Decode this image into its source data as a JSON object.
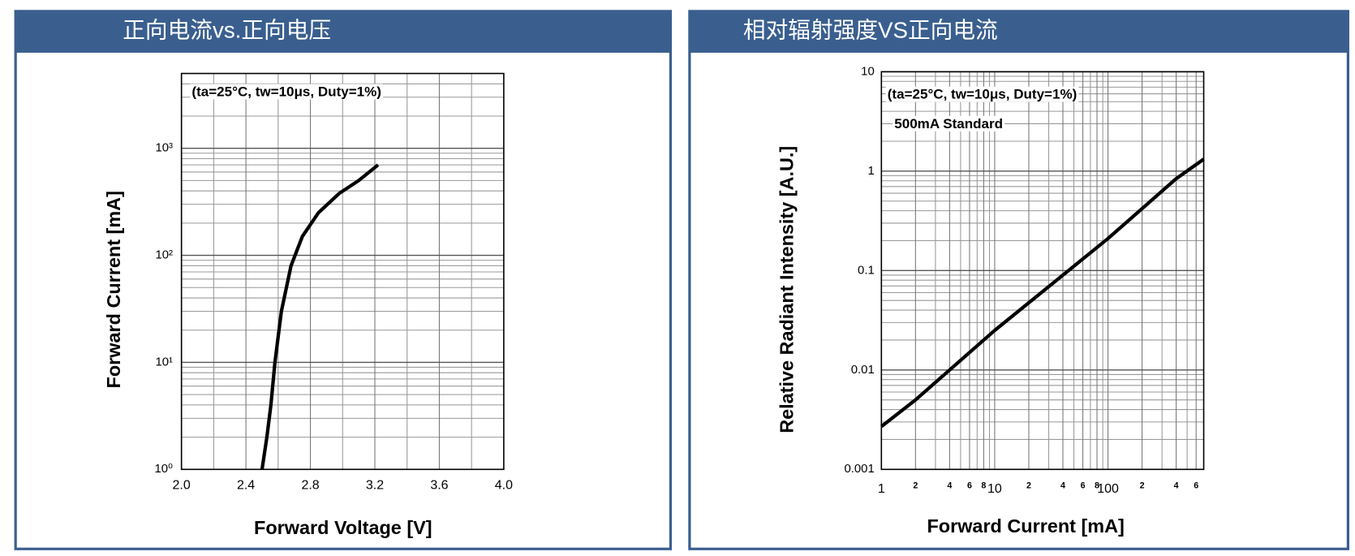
{
  "chart_data": [
    {
      "type": "line",
      "title": "正向电流vs.正向电压",
      "xlabel": "Forward Voltage [V]",
      "ylabel": "Forward Current [mA]",
      "annotations": [
        "(ta=25°C, tw=10μs, Duty=1%)"
      ],
      "x": [
        2.5,
        2.53,
        2.555,
        2.58,
        2.62,
        2.68,
        2.75,
        2.85,
        2.98,
        3.1,
        3.22
      ],
      "values": [
        1,
        2,
        4,
        10,
        30,
        80,
        150,
        250,
        380,
        500,
        700
      ],
      "color": "#000000",
      "xscale": "linear",
      "yscale": "log",
      "xlim": [
        2.0,
        4.0
      ],
      "ylim": [
        1,
        5000
      ],
      "xticks": [
        {
          "value": 2.0,
          "label": "2.0"
        },
        2.4,
        2.8,
        3.2,
        3.6,
        {
          "value": 4.0,
          "label": "4.0"
        }
      ],
      "x_minor_grid": [
        2.2,
        2.6,
        3.0,
        3.4,
        3.8
      ],
      "yticks": [
        {
          "value": 1,
          "label": "10⁰"
        },
        {
          "value": 10,
          "label": "10¹"
        },
        {
          "value": 100,
          "label": "10²"
        },
        {
          "value": 1000,
          "label": "10³"
        }
      ],
      "y_minor_grid": [
        2,
        3,
        4,
        5,
        6,
        7,
        8,
        9,
        20,
        30,
        40,
        50,
        60,
        70,
        80,
        90,
        200,
        300,
        400,
        500,
        600,
        700,
        800,
        900,
        2000,
        3000,
        4000
      ],
      "grid": true
    },
    {
      "type": "line",
      "title": "相对辐射强度VS正向电流",
      "xlabel": "Forward Current [mA]",
      "ylabel": "Relative Radiant Intensity [A.U.]",
      "annotations": [
        "(ta=25°C, tw=10μs, Duty=1%)",
        "500mA Standard"
      ],
      "x": [
        1,
        2,
        10,
        100,
        400,
        700
      ],
      "values": [
        0.0027,
        0.005,
        0.025,
        0.21,
        0.84,
        1.32
      ],
      "color": "#000000",
      "xscale": "log",
      "yscale": "log",
      "xlim": [
        1,
        700
      ],
      "ylim": [
        0.001,
        10
      ],
      "xticks": [
        1,
        2,
        4,
        6,
        8,
        10,
        {
          "value": 20,
          "label": "2"
        },
        {
          "value": 40,
          "label": "4"
        },
        {
          "value": 60,
          "label": "6"
        },
        {
          "value": 80,
          "label": "8"
        },
        100,
        {
          "value": 200,
          "label": "2"
        },
        {
          "value": 400,
          "label": "4"
        },
        {
          "value": 600,
          "label": "6"
        }
      ],
      "x_minor_grid": [
        3,
        5,
        7,
        9,
        30,
        50,
        70,
        90,
        300,
        500
      ],
      "yticks": [
        0.001,
        0.01,
        0.1,
        1,
        10
      ],
      "y_minor_grid": [
        0.002,
        0.003,
        0.004,
        0.005,
        0.006,
        0.007,
        0.008,
        0.009,
        0.02,
        0.03,
        0.04,
        0.05,
        0.06,
        0.07,
        0.08,
        0.09,
        0.2,
        0.3,
        0.4,
        0.5,
        0.6,
        0.7,
        0.8,
        0.9,
        2,
        3,
        4,
        5,
        6,
        7,
        8,
        9
      ],
      "grid": true
    }
  ]
}
